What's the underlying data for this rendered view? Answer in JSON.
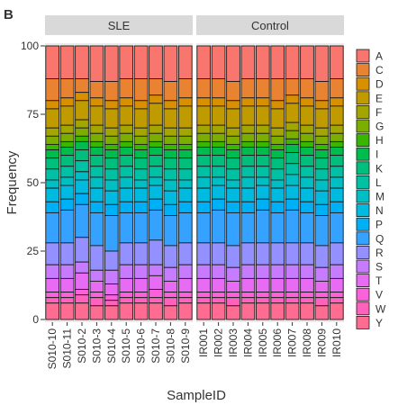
{
  "panel_label": "B",
  "chart_data": {
    "type": "bar",
    "stacked": true,
    "ylabel": "Frequency",
    "xlabel": "SampleID",
    "ylim": [
      0,
      100
    ],
    "yticks": [
      "0",
      "25",
      "50",
      "75",
      "100"
    ],
    "legend_position": "right",
    "legend": [
      "A",
      "C",
      "D",
      "E",
      "F",
      "G",
      "H",
      "I",
      "K",
      "L",
      "M",
      "N",
      "P",
      "Q",
      "R",
      "S",
      "T",
      "V",
      "W",
      "Y"
    ],
    "colors": [
      "#F8766D",
      "#EA8331",
      "#D89000",
      "#C09B00",
      "#A3A500",
      "#7CAE00",
      "#39B600",
      "#00BB4E",
      "#00BF7D",
      "#00C1A3",
      "#00BFC4",
      "#00BAE0",
      "#00B0F6",
      "#35A2FF",
      "#9590FF",
      "#C77CFF",
      "#E76BF3",
      "#FA62DB",
      "#FF62BC",
      "#FF6C91"
    ],
    "panels": [
      {
        "strip": "SLE",
        "categories": [
          "S010-10",
          "S010-11",
          "S010-2",
          "S010-3",
          "S010-4",
          "S010-5",
          "S010-6",
          "S010-7",
          "S010-8",
          "S010-9"
        ],
        "boundaries": [
          [
            88,
            80,
            77,
            70,
            67,
            64,
            62,
            59,
            55,
            51,
            48,
            43,
            39,
            28,
            20,
            15,
            10,
            8,
            6
          ],
          [
            88,
            81,
            78,
            71,
            68,
            65,
            63,
            60,
            56,
            52,
            49,
            44,
            40,
            28,
            20,
            15,
            10,
            8,
            6
          ],
          [
            88,
            83,
            80,
            73,
            70,
            67,
            65,
            62,
            58,
            54,
            51,
            46,
            42,
            30,
            21,
            17,
            11,
            9,
            6
          ],
          [
            87,
            81,
            78,
            71,
            68,
            65,
            63,
            60,
            56,
            52,
            48,
            43,
            39,
            27,
            18,
            14,
            10,
            8,
            5
          ],
          [
            87,
            80,
            77,
            70,
            67,
            64,
            62,
            59,
            55,
            51,
            47,
            42,
            38,
            25,
            18,
            13,
            9,
            7,
            5
          ],
          [
            88,
            81,
            78,
            71,
            68,
            65,
            63,
            60,
            56,
            52,
            48,
            43,
            39,
            28,
            20,
            15,
            10,
            8,
            6
          ],
          [
            88,
            80,
            77,
            70,
            67,
            64,
            62,
            59,
            55,
            51,
            48,
            43,
            39,
            28,
            20,
            15,
            10,
            8,
            6
          ],
          [
            88,
            82,
            79,
            71,
            68,
            65,
            63,
            60,
            56,
            52,
            49,
            44,
            40,
            29,
            20,
            16,
            11,
            8,
            6
          ],
          [
            87,
            80,
            77,
            70,
            67,
            64,
            62,
            59,
            55,
            51,
            47,
            42,
            38,
            27,
            19,
            14,
            10,
            8,
            5
          ],
          [
            88,
            81,
            78,
            70,
            67,
            64,
            62,
            59,
            55,
            51,
            48,
            43,
            39,
            28,
            20,
            15,
            10,
            8,
            6
          ]
        ]
      },
      {
        "strip": "Control",
        "categories": [
          "IR001",
          "IR002",
          "IR003",
          "IR004",
          "IR005",
          "IR006",
          "IR007",
          "IR008",
          "IR009",
          "IR010"
        ],
        "boundaries": [
          [
            88,
            81,
            78,
            71,
            68,
            65,
            63,
            60,
            56,
            52,
            48,
            43,
            39,
            28,
            20,
            15,
            10,
            8,
            6
          ],
          [
            88,
            81,
            78,
            71,
            68,
            65,
            63,
            60,
            56,
            52,
            49,
            44,
            40,
            28,
            20,
            15,
            10,
            8,
            6
          ],
          [
            87,
            80,
            77,
            70,
            67,
            64,
            62,
            59,
            55,
            51,
            48,
            43,
            39,
            27,
            19,
            14,
            10,
            8,
            5
          ],
          [
            88,
            81,
            78,
            71,
            68,
            65,
            63,
            60,
            56,
            52,
            48,
            43,
            39,
            28,
            20,
            15,
            10,
            8,
            6
          ],
          [
            88,
            81,
            78,
            71,
            68,
            65,
            63,
            60,
            56,
            52,
            49,
            44,
            40,
            28,
            20,
            15,
            10,
            8,
            6
          ],
          [
            88,
            80,
            77,
            70,
            67,
            64,
            62,
            59,
            55,
            51,
            48,
            43,
            39,
            28,
            20,
            15,
            10,
            8,
            6
          ],
          [
            88,
            82,
            79,
            72,
            69,
            66,
            64,
            61,
            57,
            53,
            49,
            44,
            40,
            28,
            20,
            15,
            10,
            8,
            6
          ],
          [
            88,
            81,
            78,
            71,
            68,
            65,
            63,
            60,
            56,
            52,
            48,
            43,
            39,
            28,
            20,
            15,
            10,
            8,
            6
          ],
          [
            87,
            80,
            77,
            70,
            67,
            64,
            62,
            59,
            55,
            51,
            47,
            42,
            38,
            27,
            19,
            14,
            10,
            8,
            5
          ],
          [
            88,
            81,
            78,
            71,
            68,
            65,
            63,
            60,
            56,
            52,
            48,
            43,
            39,
            28,
            20,
            15,
            10,
            8,
            6
          ]
        ]
      }
    ]
  }
}
